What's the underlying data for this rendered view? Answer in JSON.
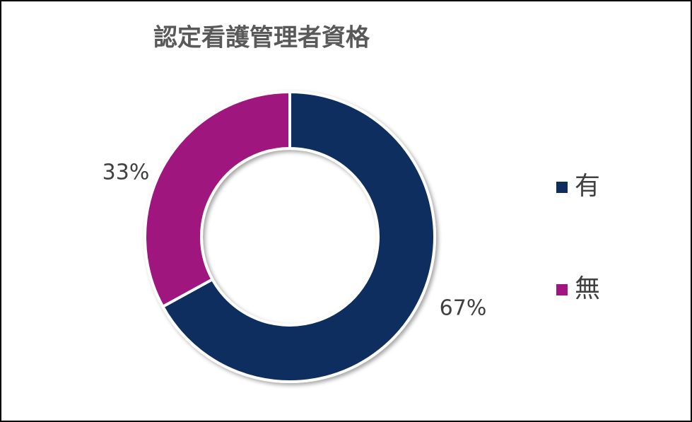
{
  "chart_data": {
    "type": "donut",
    "title": "認定看護管理者資格",
    "categories": [
      "有",
      "無"
    ],
    "values": [
      67,
      33
    ],
    "value_labels": [
      "67%",
      "33%"
    ],
    "colors": [
      "#0d2d5e",
      "#a0157f"
    ],
    "legend": "right"
  }
}
